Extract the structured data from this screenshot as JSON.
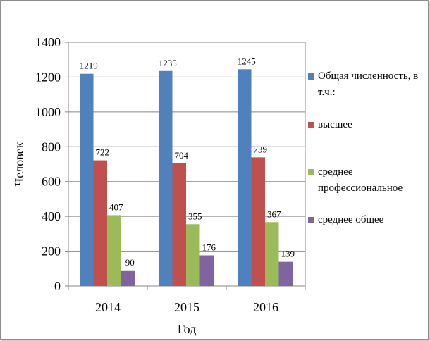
{
  "chart_data": {
    "type": "bar",
    "categories": [
      "2014",
      "2015",
      "2016"
    ],
    "series": [
      {
        "name": "Общая численность, в т.ч.:",
        "color": "#4f81bd",
        "values": [
          1219,
          1235,
          1245
        ]
      },
      {
        "name": "высшее",
        "color": "#c0504d",
        "values": [
          722,
          704,
          739
        ]
      },
      {
        "name": "среднее профессиональное",
        "color": "#9bbb59",
        "values": [
          407,
          355,
          367
        ]
      },
      {
        "name": "среднее общее",
        "color": "#8064a2",
        "values": [
          90,
          176,
          139
        ]
      }
    ],
    "xlabel": "Год",
    "ylabel": "Человек",
    "ylim": [
      0,
      1400
    ],
    "yticks": [
      "0",
      "200",
      "400",
      "600",
      "800",
      "1000",
      "1200",
      "1400"
    ],
    "grid": true,
    "legend_position": "right"
  }
}
